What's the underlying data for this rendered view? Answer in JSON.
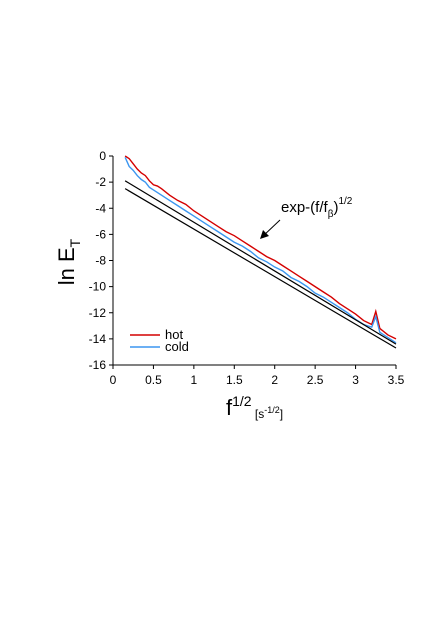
{
  "chart_data": {
    "type": "line",
    "ylabel": {
      "main": "ln E",
      "sub": "T"
    },
    "xlabel": {
      "main": "f",
      "sup": "1/2",
      "unit_open": " [s",
      "unit_sup": "-1/2",
      "unit_close": "]"
    },
    "annotation": {
      "main": "exp-(f/f",
      "sub": "β",
      "close": ")",
      "sup": "1/2"
    },
    "xlim": [
      0,
      3.5
    ],
    "xticks": [
      0,
      0.5,
      1,
      1.5,
      2,
      2.5,
      3,
      3.5
    ],
    "ylim": [
      -16,
      0
    ],
    "yticks": [
      -16,
      -14,
      -12,
      -10,
      -8,
      -6,
      -4,
      -2,
      0
    ],
    "series": [
      {
        "name": "hot",
        "color": "#d40000",
        "x": [
          0.15,
          0.2,
          0.25,
          0.3,
          0.35,
          0.4,
          0.45,
          0.5,
          0.55,
          0.6,
          0.7,
          0.8,
          0.9,
          1.0,
          1.1,
          1.2,
          1.3,
          1.4,
          1.5,
          1.6,
          1.7,
          1.8,
          1.9,
          2.0,
          2.1,
          2.2,
          2.3,
          2.4,
          2.5,
          2.6,
          2.7,
          2.8,
          2.9,
          3.0,
          3.1,
          3.2,
          3.25,
          3.3,
          3.4,
          3.5
        ],
        "values": [
          0,
          -0.2,
          -0.6,
          -1.0,
          -1.3,
          -1.5,
          -1.9,
          -2.2,
          -2.3,
          -2.5,
          -3.0,
          -3.4,
          -3.7,
          -4.2,
          -4.6,
          -5.0,
          -5.4,
          -5.8,
          -6.1,
          -6.5,
          -6.9,
          -7.3,
          -7.7,
          -8.0,
          -8.4,
          -8.8,
          -9.2,
          -9.6,
          -10.0,
          -10.4,
          -10.8,
          -11.3,
          -11.7,
          -12.1,
          -12.6,
          -12.9,
          -11.9,
          -13.2,
          -13.7,
          -14.0
        ]
      },
      {
        "name": "cold",
        "color": "#3c96f0",
        "x": [
          0.15,
          0.2,
          0.25,
          0.3,
          0.35,
          0.4,
          0.45,
          0.5,
          0.55,
          0.6,
          0.7,
          0.8,
          0.9,
          1.0,
          1.1,
          1.2,
          1.3,
          1.4,
          1.5,
          1.6,
          1.7,
          1.8,
          1.9,
          2.0,
          2.1,
          2.2,
          2.3,
          2.4,
          2.5,
          2.6,
          2.7,
          2.8,
          2.9,
          3.0,
          3.1,
          3.2,
          3.25,
          3.3,
          3.4,
          3.5
        ],
        "values": [
          -0.1,
          -0.8,
          -1.1,
          -1.5,
          -1.8,
          -2.0,
          -2.4,
          -2.6,
          -2.8,
          -3.0,
          -3.4,
          -3.8,
          -4.2,
          -4.6,
          -5.0,
          -5.4,
          -5.8,
          -6.2,
          -6.6,
          -6.9,
          -7.3,
          -7.8,
          -8.1,
          -8.5,
          -8.8,
          -9.3,
          -9.6,
          -10.0,
          -10.5,
          -10.8,
          -11.2,
          -11.6,
          -12.0,
          -12.5,
          -12.9,
          -13.1,
          -12.3,
          -13.5,
          -13.9,
          -14.3
        ]
      },
      {
        "color": "#000000",
        "x": [
          0.15,
          3.5
        ],
        "values": [
          -1.9,
          -14.4
        ]
      },
      {
        "color": "#000000",
        "x": [
          0.15,
          3.5
        ],
        "values": [
          -2.5,
          -14.7
        ]
      }
    ]
  }
}
